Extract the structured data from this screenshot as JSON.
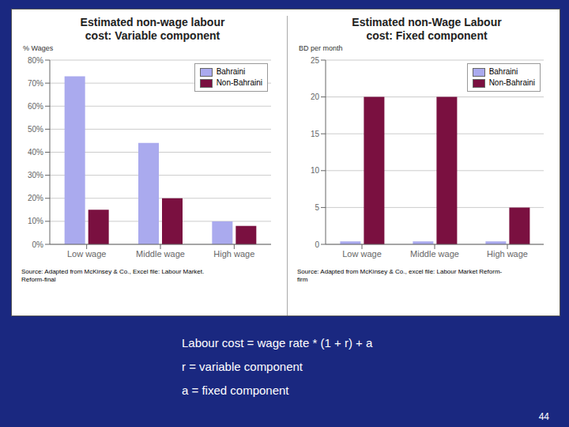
{
  "chart_data": [
    {
      "type": "bar",
      "title": "Estimated non-wage labour\ncost: Variable component",
      "ylabel": "% Wages",
      "categories": [
        "Low wage",
        "Middle wage",
        "High wage"
      ],
      "series": [
        {
          "name": "Bahraini",
          "color": "#aaaaee",
          "values": [
            73,
            44,
            10
          ]
        },
        {
          "name": "Non-Bahraini",
          "color": "#7a1040",
          "values": [
            15,
            20,
            8
          ]
        }
      ],
      "ylim": [
        0,
        80
      ],
      "yticks": [
        {
          "value": 0,
          "label": "0%"
        },
        {
          "value": 10,
          "label": "10%"
        },
        {
          "value": 20,
          "label": "20%"
        },
        {
          "value": 30,
          "label": "30%"
        },
        {
          "value": 40,
          "label": "40%"
        },
        {
          "value": 50,
          "label": "50%"
        },
        {
          "value": 60,
          "label": "60%"
        },
        {
          "value": 70,
          "label": "70%"
        },
        {
          "value": 80,
          "label": "80%"
        }
      ],
      "grid": true,
      "legend": "upper right",
      "annotations": [
        "Source: Adapted from McKinsey & Co., Excel file: Labour Market.\nReform-final"
      ]
    },
    {
      "type": "bar",
      "title": "Estimated non-Wage Labour\ncost: Fixed component",
      "ylabel": "BD per month",
      "categories": [
        "Low wage",
        "Middle wage",
        "High wage"
      ],
      "series": [
        {
          "name": "Bahraini",
          "color": "#aaaaee",
          "values": [
            0.4,
            0.4,
            0.4
          ]
        },
        {
          "name": "Non-Bahraini",
          "color": "#7a1040",
          "values": [
            20,
            20,
            5
          ]
        }
      ],
      "ylim": [
        0,
        25
      ],
      "yticks": [
        0,
        5,
        10,
        15,
        20,
        25
      ],
      "grid": true,
      "legend": "upper right",
      "annotations": [
        "Source: Adapted from McKinsey & Co., excel file: Labour Market Reform-\nfirm"
      ]
    }
  ],
  "annotations": [
    "Labour cost = wage rate * (1 + r) + a",
    "r = variable component",
    "a = fixed component",
    "44"
  ]
}
